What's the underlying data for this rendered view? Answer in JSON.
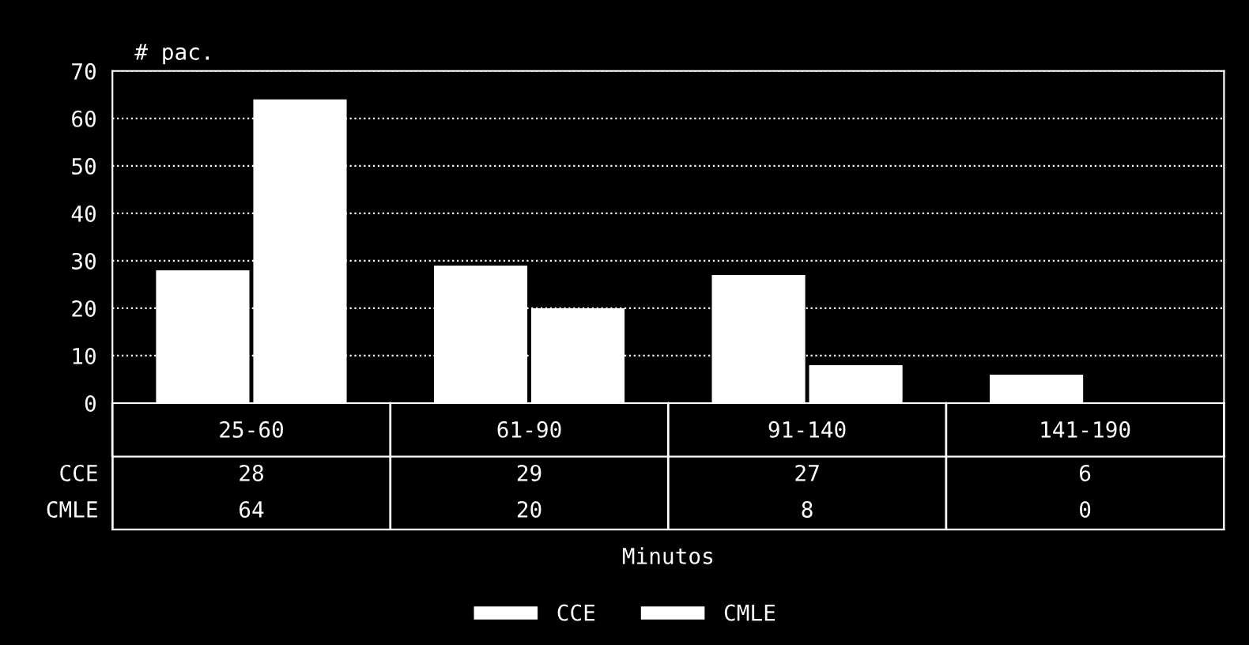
{
  "chart_data": {
    "type": "bar",
    "ylabel": "# pac.",
    "xlabel": "Minutos",
    "categories": [
      "25-60",
      "61-90",
      "91-140",
      "141-190"
    ],
    "series": [
      {
        "name": "CCE",
        "color": "#ffffff",
        "values": [
          28,
          29,
          27,
          6
        ]
      },
      {
        "name": "CMLE",
        "color": "#ffffff",
        "values": [
          64,
          20,
          8,
          0
        ]
      }
    ],
    "ylim": [
      0,
      70
    ],
    "yticks": [
      0,
      10,
      20,
      30,
      40,
      50,
      60,
      70
    ],
    "grid": "y",
    "line_style": "dotted",
    "legend": "bottom",
    "data_labels": true
  }
}
